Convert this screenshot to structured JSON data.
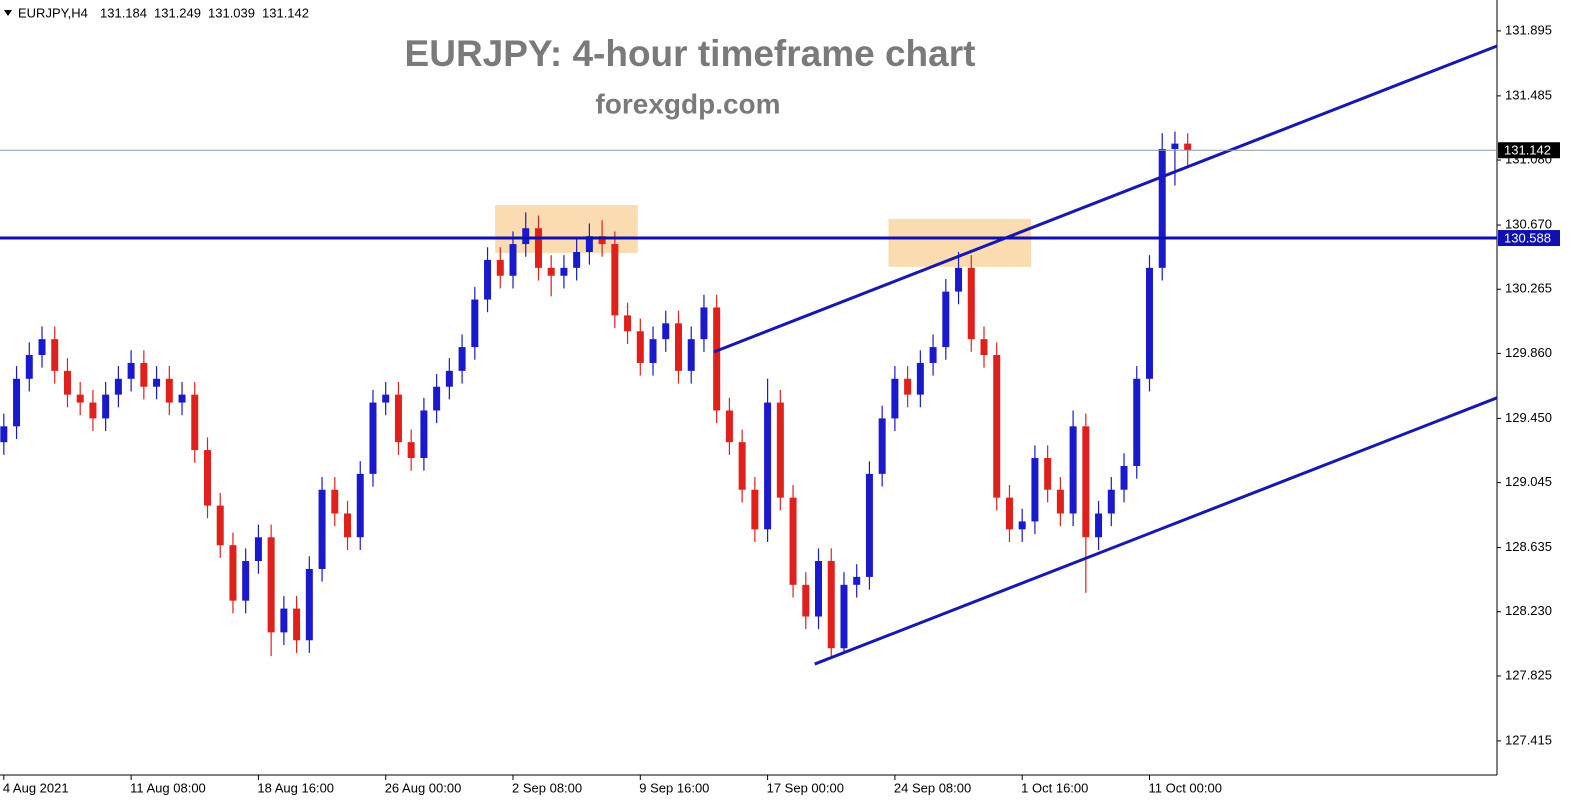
{
  "chart_data": {
    "type": "candlestick",
    "symbol": "EURJPY,H4",
    "title": "EURJPY: 4-hour timeframe chart",
    "subtitle": "forexgdp.com",
    "up_color": "#1a1acc",
    "down_color": "#e0201b",
    "open": [
      129.3,
      129.4,
      129.7,
      129.85,
      129.95,
      129.75,
      129.6,
      129.55,
      129.45,
      129.6,
      129.7,
      129.8,
      129.65,
      129.7,
      129.55,
      129.6,
      129.25,
      128.9,
      128.65,
      128.3,
      128.55,
      128.7,
      128.1,
      128.25,
      128.05,
      128.5,
      129.0,
      128.85,
      128.7,
      129.1,
      129.55,
      129.6,
      129.3,
      129.2,
      129.5,
      129.65,
      129.75,
      129.9,
      130.2,
      130.45,
      130.35,
      130.55,
      130.65,
      130.4,
      130.35,
      130.4,
      130.5,
      130.6,
      130.55,
      130.1,
      130.0,
      129.8,
      129.95,
      130.05,
      129.75,
      129.95,
      130.15,
      129.5,
      129.3,
      129.0,
      128.75,
      129.55,
      128.95,
      128.4,
      128.2,
      128.55,
      128.0,
      128.4,
      128.45,
      129.1,
      129.45,
      129.7,
      129.6,
      129.8,
      129.9,
      130.25,
      130.4,
      129.95,
      129.85,
      128.95,
      128.75,
      128.8,
      129.2,
      129.0,
      128.85,
      129.4,
      128.7,
      128.85,
      129.0,
      129.15,
      129.7,
      130.4,
      131.15,
      131.184
    ],
    "high": [
      129.48,
      129.78,
      129.93,
      130.03,
      130.03,
      129.83,
      129.68,
      129.63,
      129.68,
      129.78,
      129.88,
      129.88,
      129.78,
      129.78,
      129.68,
      129.68,
      129.33,
      128.98,
      128.73,
      128.63,
      128.78,
      128.78,
      128.33,
      128.33,
      128.58,
      129.08,
      129.08,
      128.93,
      129.18,
      129.63,
      129.68,
      129.68,
      129.38,
      129.58,
      129.73,
      129.83,
      129.98,
      130.28,
      130.53,
      130.53,
      130.63,
      130.75,
      130.73,
      130.48,
      130.48,
      130.58,
      130.68,
      130.7,
      130.63,
      130.18,
      130.08,
      130.03,
      130.13,
      130.13,
      130.03,
      130.23,
      130.23,
      129.58,
      129.38,
      129.08,
      129.7,
      129.63,
      129.03,
      128.48,
      128.63,
      128.63,
      128.48,
      128.53,
      129.18,
      129.53,
      129.78,
      129.78,
      129.88,
      129.98,
      130.33,
      130.5,
      130.48,
      130.03,
      129.93,
      129.03,
      128.88,
      129.28,
      129.28,
      129.08,
      129.5,
      129.48,
      128.93,
      129.08,
      129.23,
      129.78,
      130.48,
      131.25,
      131.26,
      131.249
    ],
    "low": [
      129.22,
      129.32,
      129.62,
      129.77,
      129.67,
      129.52,
      129.47,
      129.37,
      129.37,
      129.52,
      129.62,
      129.57,
      129.57,
      129.47,
      129.47,
      129.17,
      128.82,
      128.57,
      128.22,
      128.22,
      128.47,
      127.95,
      128.02,
      127.97,
      127.97,
      128.42,
      128.77,
      128.62,
      128.62,
      129.02,
      129.47,
      129.22,
      129.12,
      129.12,
      129.42,
      129.57,
      129.67,
      129.82,
      130.12,
      130.27,
      130.27,
      130.47,
      130.32,
      130.22,
      130.27,
      130.32,
      130.42,
      130.47,
      130.02,
      129.92,
      129.72,
      129.72,
      129.87,
      129.67,
      129.67,
      129.87,
      129.42,
      129.22,
      128.92,
      128.67,
      128.67,
      128.87,
      128.32,
      128.12,
      128.12,
      127.95,
      127.97,
      128.32,
      128.37,
      129.02,
      129.37,
      129.52,
      129.52,
      129.72,
      129.82,
      130.17,
      129.87,
      129.77,
      128.87,
      128.67,
      128.67,
      128.72,
      128.92,
      128.77,
      128.77,
      128.35,
      128.62,
      128.77,
      128.92,
      129.07,
      129.62,
      130.32,
      130.92,
      131.039
    ],
    "close": [
      129.4,
      129.7,
      129.85,
      129.95,
      129.75,
      129.6,
      129.55,
      129.45,
      129.6,
      129.7,
      129.8,
      129.65,
      129.7,
      129.55,
      129.6,
      129.25,
      128.9,
      128.65,
      128.3,
      128.55,
      128.7,
      128.1,
      128.25,
      128.05,
      128.5,
      129.0,
      128.85,
      128.7,
      129.1,
      129.55,
      129.6,
      129.3,
      129.2,
      129.5,
      129.65,
      129.75,
      129.9,
      130.2,
      130.45,
      130.35,
      130.55,
      130.65,
      130.4,
      130.35,
      130.4,
      130.5,
      130.6,
      130.55,
      130.1,
      130.0,
      129.8,
      129.95,
      130.05,
      129.75,
      129.95,
      130.15,
      129.5,
      129.3,
      129.0,
      128.75,
      129.55,
      128.95,
      128.4,
      128.2,
      128.55,
      128.0,
      128.4,
      128.45,
      129.1,
      129.45,
      129.7,
      129.6,
      129.8,
      129.9,
      130.25,
      130.4,
      129.95,
      129.85,
      128.95,
      128.75,
      128.8,
      129.2,
      129.0,
      128.85,
      129.4,
      128.7,
      128.85,
      129.0,
      129.15,
      129.7,
      130.4,
      131.15,
      131.184,
      131.142
    ],
    "xlim": [
      -0.3,
      117.3
    ],
    "xticks": [
      {
        "value": 0,
        "label": "4 Aug 2021"
      },
      {
        "value": 10,
        "label": "11 Aug 08:00"
      },
      {
        "value": 20,
        "label": "18 Aug 16:00"
      },
      {
        "value": 30,
        "label": "26 Aug 00:00"
      },
      {
        "value": 40,
        "label": "2 Sep 08:00"
      },
      {
        "value": 50,
        "label": "9 Sep 16:00"
      },
      {
        "value": 60,
        "label": "17 Sep 00:00"
      },
      {
        "value": 70,
        "label": "24 Sep 08:00"
      },
      {
        "value": 80,
        "label": "1 Oct 16:00"
      },
      {
        "value": 90,
        "label": "11 Oct 00:00"
      }
    ],
    "ylim": [
      127.2,
      132.09
    ],
    "yticks": [
      127.415,
      127.825,
      {
        "value": 128.23,
        "label": "128.230"
      },
      128.635,
      129.045,
      {
        "value": 129.45,
        "label": "129.450"
      },
      {
        "value": 129.86,
        "label": "129.860"
      },
      130.265,
      {
        "value": 130.67,
        "label": "130.670"
      },
      {
        "value": 131.08,
        "label": "131.080"
      },
      131.485,
      131.895
    ],
    "hlines": [
      {
        "value": 130.588,
        "color": "#1010b0"
      }
    ],
    "trendlines": [
      {
        "x": [
          55.8,
          117.3
        ],
        "y": [
          129.87,
          131.8
        ],
        "color": "#1818b0"
      },
      {
        "x": [
          63.7,
          117.3
        ],
        "y": [
          127.9,
          129.58
        ],
        "color": "#1818b0"
      }
    ],
    "zones": [
      {
        "x": [
          38.6,
          49.8
        ],
        "y": [
          130.494,
          130.797
        ],
        "color": "#fadcb0"
      },
      {
        "x": [
          69.5,
          80.7
        ],
        "y": [
          130.406,
          130.709
        ],
        "color": "#fadcb0"
      }
    ]
  }
}
